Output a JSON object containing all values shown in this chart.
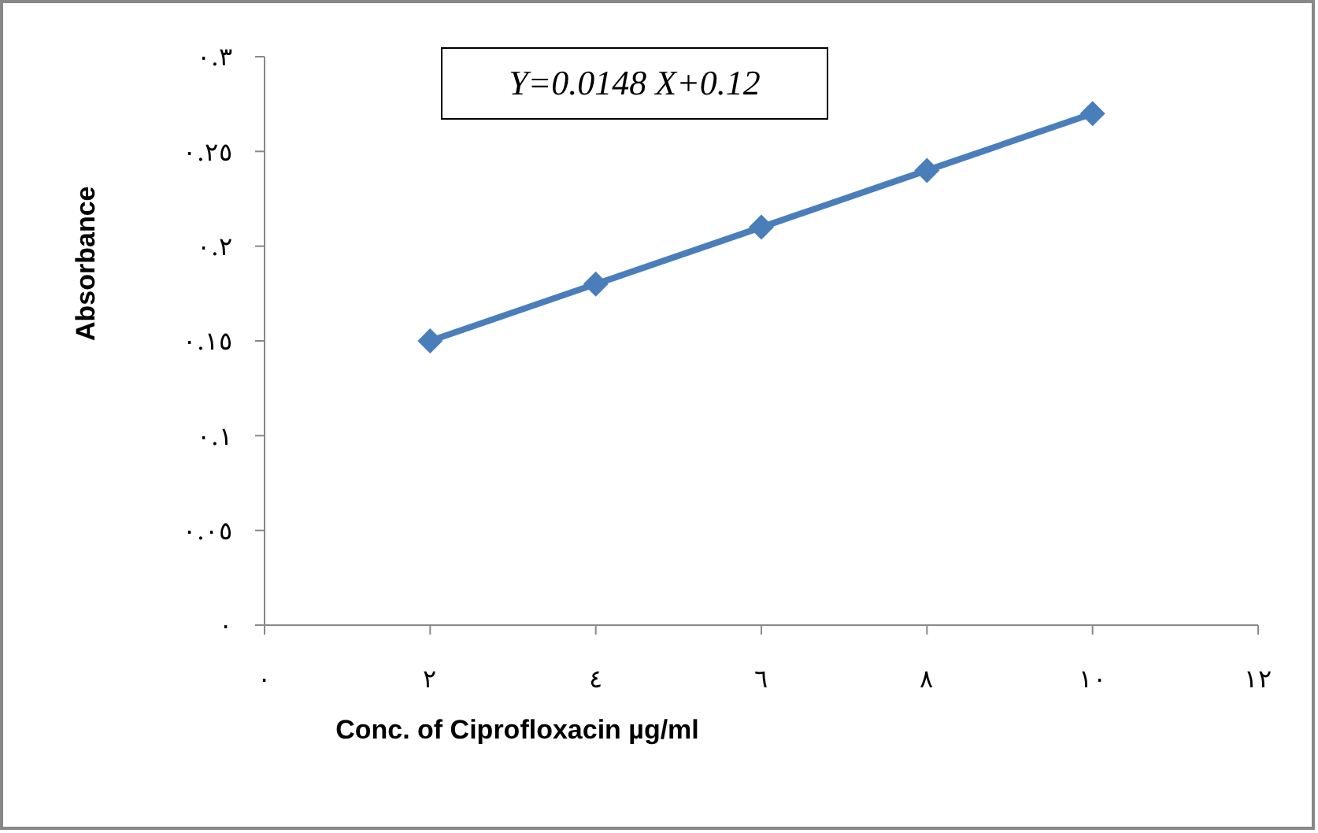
{
  "chart_data": {
    "type": "line",
    "xlabel": "Conc. of Ciprofloxacin µg/ml",
    "ylabel": "Absorbance",
    "annotations": [
      "Y=0.0148 X+0.12"
    ],
    "x": [
      2,
      4,
      6,
      8,
      10
    ],
    "series": [
      {
        "color": "#4a7ebb",
        "values": [
          0.15,
          0.18,
          0.21,
          0.24,
          0.27
        ]
      }
    ],
    "xlim": [
      0,
      12
    ],
    "xticks": [
      {
        "value": 0,
        "label": "٠"
      },
      {
        "value": 2,
        "label": "٢"
      },
      {
        "value": 4,
        "label": "٤"
      },
      {
        "value": 6,
        "label": "٦"
      },
      {
        "value": 8,
        "label": "٨"
      },
      {
        "value": 10,
        "label": "١٠"
      },
      {
        "value": 12,
        "label": "١٢"
      }
    ],
    "ylim": [
      0,
      0.3
    ],
    "yticks": [
      {
        "value": 0,
        "label": "٠"
      },
      {
        "value": 0.05,
        "label": "٠.٠٥"
      },
      {
        "value": 0.1,
        "label": "٠.١"
      },
      {
        "value": 0.15,
        "label": "٠.١٥"
      },
      {
        "value": 0.2,
        "label": "٠.٢"
      },
      {
        "value": 0.25,
        "label": "٠.٢٥"
      },
      {
        "value": 0.3,
        "label": "٠.٣"
      }
    ],
    "marker": "diamond",
    "line_style": "solid",
    "grid": false,
    "legend": false
  }
}
